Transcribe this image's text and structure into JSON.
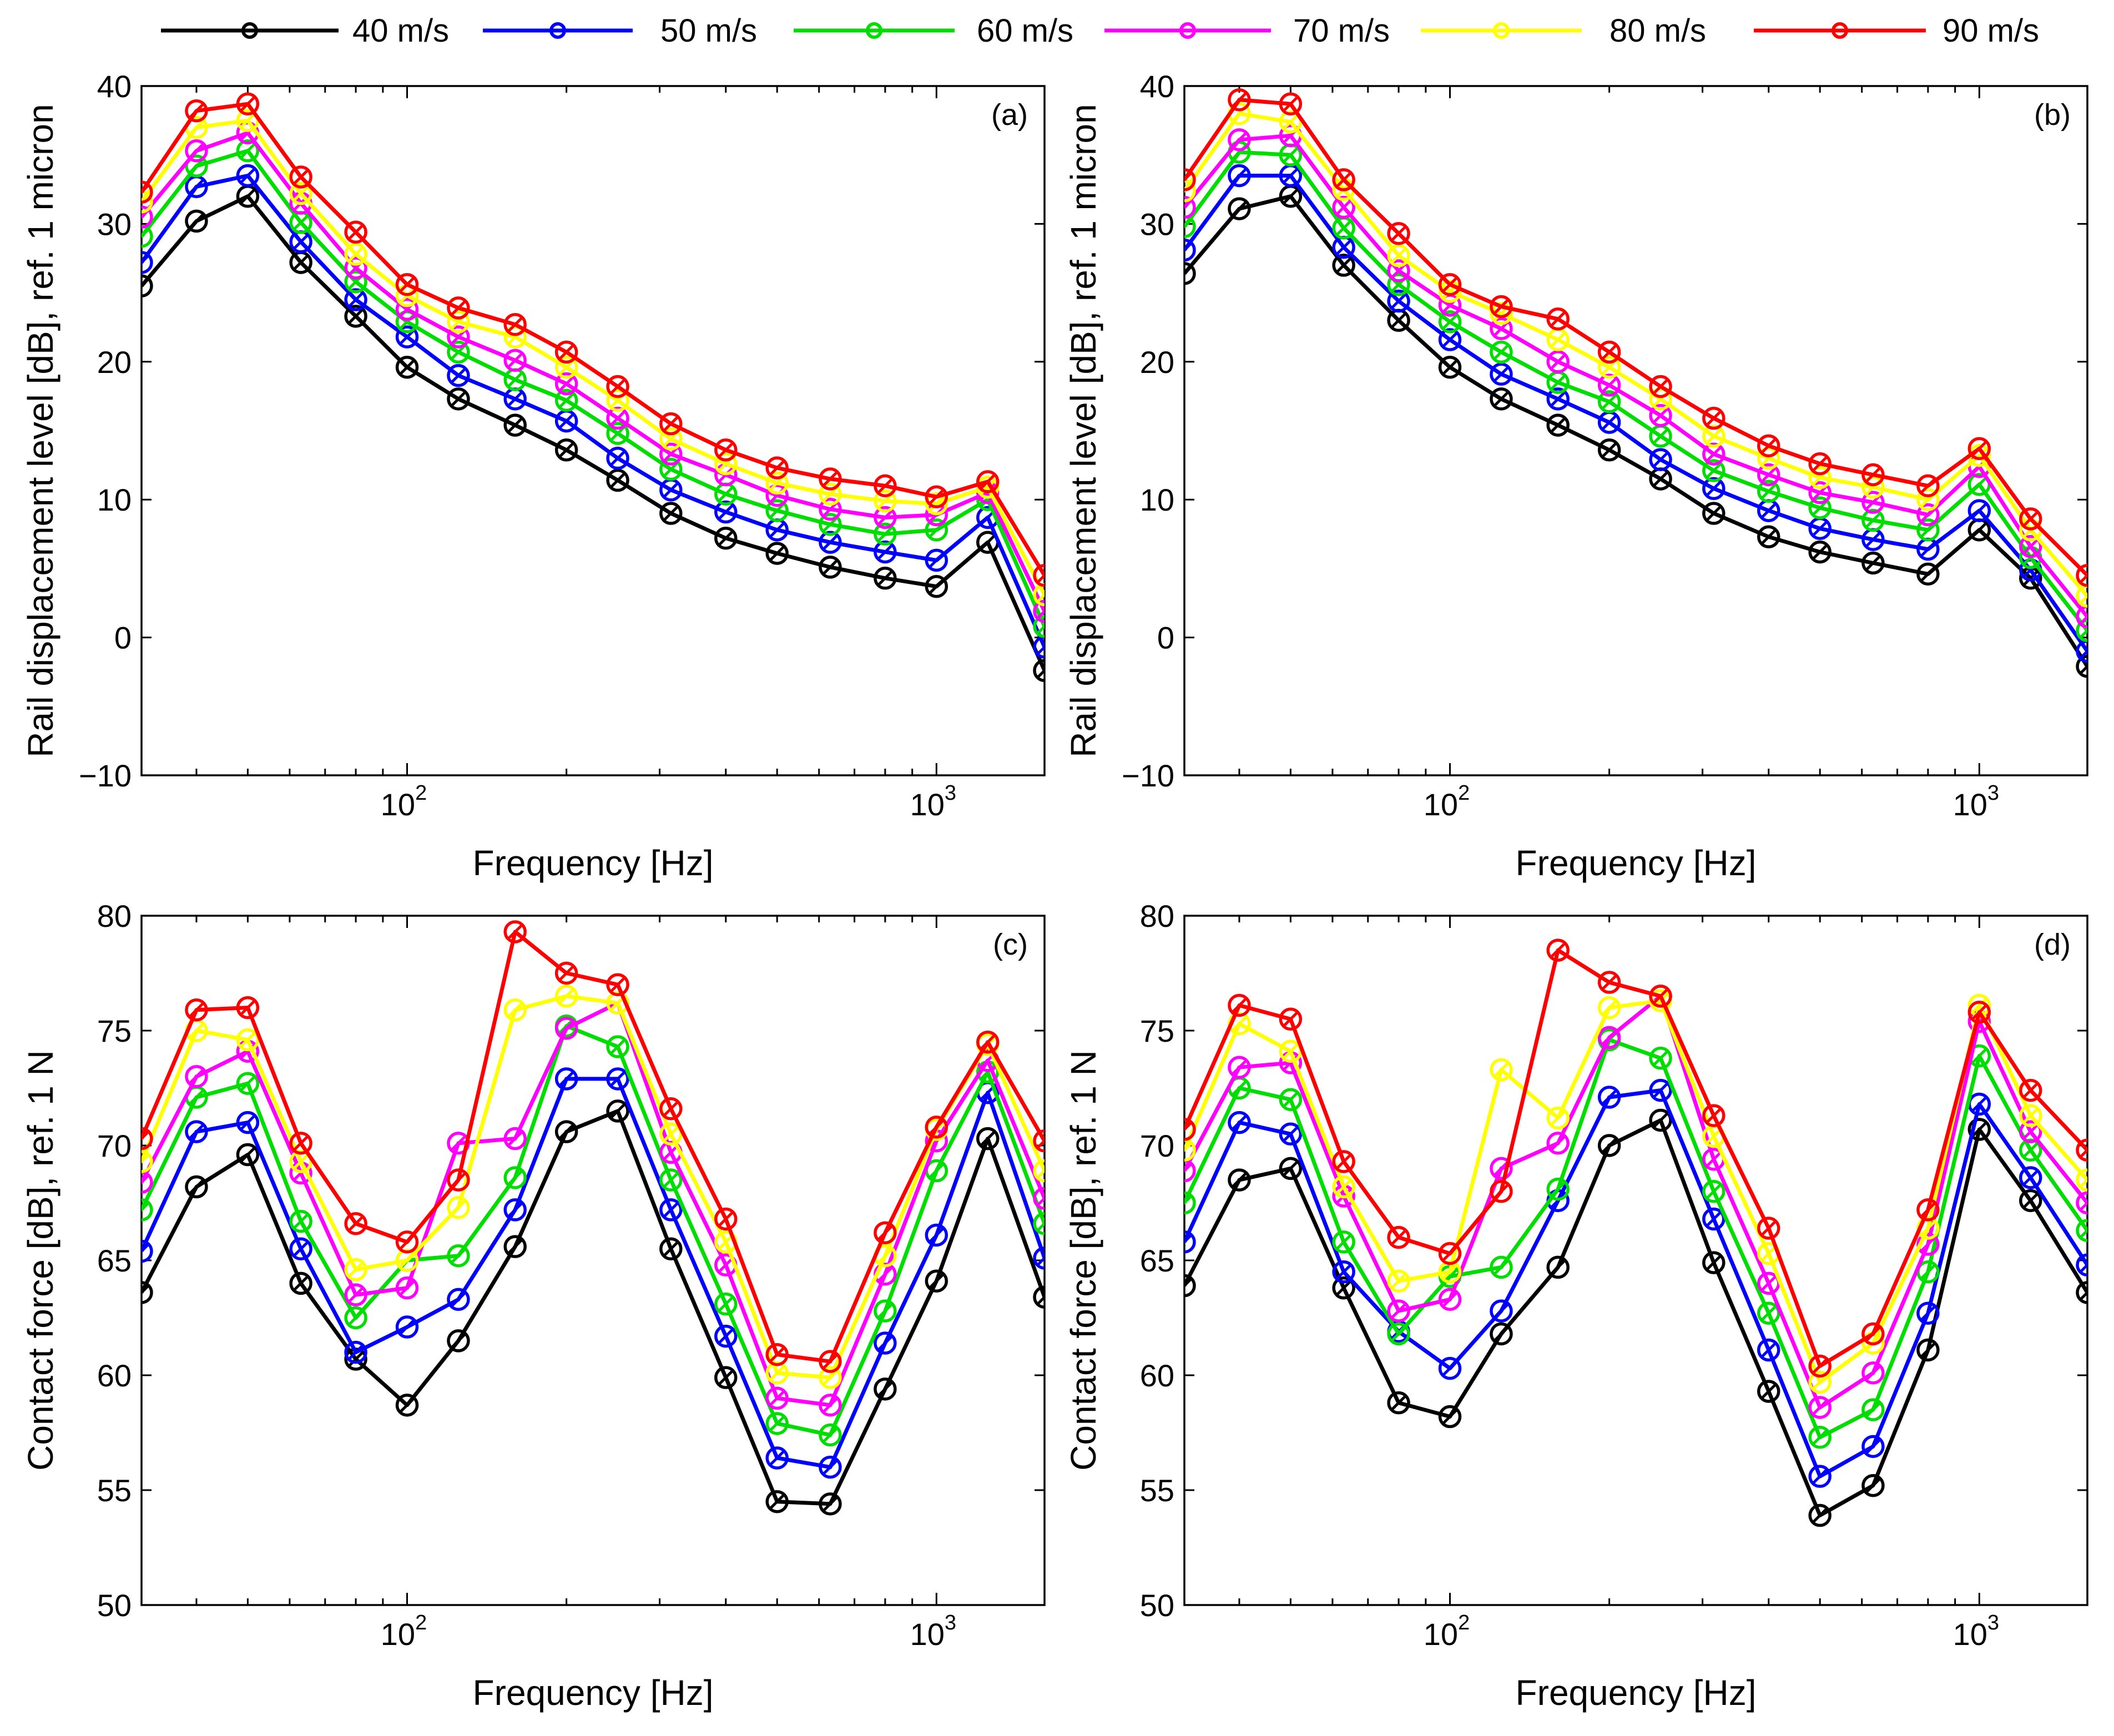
{
  "legend": [
    {
      "name": "40 m/s",
      "color": "#000000"
    },
    {
      "name": "50 m/s",
      "color": "#0000ff"
    },
    {
      "name": "60 m/s",
      "color": "#00dd00"
    },
    {
      "name": "70 m/s",
      "color": "#ff00ff"
    },
    {
      "name": "80 m/s",
      "color": "#ffff00"
    },
    {
      "name": "90 m/s",
      "color": "#ff0000"
    }
  ],
  "chart_data": [
    {
      "type": "line",
      "panel_label": "(a)",
      "xlabel": "Frequency [Hz]",
      "ylabel": "Rail displacement level [dB], ref. 1 micron",
      "xscale": "log",
      "xlim": [
        31.5,
        1600
      ],
      "ylim": [
        -10,
        40
      ],
      "yticks": [
        -10,
        0,
        10,
        20,
        30,
        40
      ],
      "ytick_labels": [
        "−10",
        "0",
        "10",
        "20",
        "30",
        "40"
      ],
      "xticks": [
        {
          "value": 100,
          "base": "10",
          "exp": "2"
        },
        {
          "value": 1000,
          "base": "10",
          "exp": "3"
        }
      ],
      "x": [
        31.5,
        40,
        50,
        63,
        80,
        100,
        125,
        160,
        200,
        250,
        315,
        400,
        500,
        630,
        800,
        1000,
        1250,
        1600
      ],
      "series": [
        {
          "name": "40 m/s",
          "values": [
            25.5,
            30.2,
            32.0,
            27.2,
            23.3,
            19.6,
            17.3,
            15.4,
            13.6,
            11.4,
            9.0,
            7.2,
            6.1,
            5.1,
            4.3,
            3.7,
            6.9,
            -2.4
          ]
        },
        {
          "name": "50 m/s",
          "values": [
            27.2,
            32.7,
            33.5,
            28.7,
            24.5,
            21.8,
            19.0,
            17.3,
            15.7,
            13.0,
            10.7,
            9.1,
            7.8,
            6.9,
            6.2,
            5.6,
            8.7,
            -0.7
          ]
        },
        {
          "name": "60 m/s",
          "values": [
            29.1,
            34.2,
            35.3,
            30.1,
            25.8,
            22.9,
            20.7,
            18.7,
            17.2,
            14.8,
            12.2,
            10.4,
            9.2,
            8.2,
            7.5,
            7.8,
            10.0,
            0.8
          ]
        },
        {
          "name": "70 m/s",
          "values": [
            30.5,
            35.3,
            36.6,
            31.5,
            26.8,
            23.8,
            21.8,
            20.1,
            18.4,
            15.9,
            13.3,
            11.8,
            10.3,
            9.3,
            8.7,
            8.9,
            10.5,
            1.9
          ]
        },
        {
          "name": "80 m/s",
          "values": [
            31.6,
            37.0,
            37.5,
            32.2,
            27.8,
            24.8,
            22.9,
            21.8,
            19.6,
            17.2,
            14.4,
            12.6,
            11.2,
            10.4,
            9.9,
            9.7,
            10.9,
            3.1
          ]
        },
        {
          "name": "90 m/s",
          "values": [
            32.3,
            38.2,
            38.7,
            33.4,
            29.4,
            25.6,
            23.9,
            22.7,
            20.7,
            18.2,
            15.5,
            13.6,
            12.3,
            11.5,
            11.0,
            10.2,
            11.3,
            4.5
          ]
        }
      ]
    },
    {
      "type": "line",
      "panel_label": "(b)",
      "xlabel": "Frequency [Hz]",
      "ylabel": "Rail displacement level [dB], ref. 1 micron",
      "xscale": "log",
      "xlim": [
        31.5,
        1600
      ],
      "ylim": [
        -10,
        40
      ],
      "yticks": [
        -10,
        0,
        10,
        20,
        30,
        40
      ],
      "ytick_labels": [
        "−10",
        "0",
        "10",
        "20",
        "30",
        "40"
      ],
      "xticks": [
        {
          "value": 100,
          "base": "10",
          "exp": "2"
        },
        {
          "value": 1000,
          "base": "10",
          "exp": "3"
        }
      ],
      "x": [
        31.5,
        40,
        50,
        63,
        80,
        100,
        125,
        160,
        200,
        250,
        315,
        400,
        500,
        630,
        800,
        1000,
        1250,
        1600
      ],
      "series": [
        {
          "name": "40 m/s",
          "values": [
            26.4,
            31.1,
            32.0,
            27.0,
            23.0,
            19.6,
            17.3,
            15.4,
            13.6,
            11.5,
            9.0,
            7.3,
            6.2,
            5.4,
            4.6,
            7.8,
            4.3,
            -2.1
          ]
        },
        {
          "name": "50 m/s",
          "values": [
            28.1,
            33.5,
            33.5,
            28.3,
            24.4,
            21.6,
            19.1,
            17.3,
            15.6,
            12.9,
            10.8,
            9.2,
            7.9,
            7.1,
            6.4,
            9.2,
            4.9,
            -1.0
          ]
        },
        {
          "name": "60 m/s",
          "values": [
            29.8,
            35.2,
            35.0,
            29.7,
            25.6,
            22.9,
            20.7,
            18.5,
            17.1,
            14.6,
            12.1,
            10.6,
            9.4,
            8.5,
            7.8,
            11.1,
            5.8,
            0.5
          ]
        },
        {
          "name": "70 m/s",
          "values": [
            31.2,
            36.1,
            36.4,
            31.2,
            26.6,
            24.1,
            22.4,
            20.0,
            18.3,
            16.1,
            13.3,
            11.8,
            10.5,
            9.8,
            8.9,
            12.4,
            6.6,
            1.5
          ]
        },
        {
          "name": "80 m/s",
          "values": [
            32.4,
            38.0,
            37.4,
            32.5,
            27.7,
            25.1,
            23.5,
            21.6,
            19.6,
            17.3,
            14.6,
            13.0,
            11.6,
            10.9,
            10.0,
            13.2,
            7.8,
            3.0
          ]
        },
        {
          "name": "90 m/s",
          "values": [
            33.2,
            39.0,
            38.7,
            33.2,
            29.3,
            25.6,
            24.0,
            23.1,
            20.7,
            18.2,
            15.9,
            13.9,
            12.6,
            11.8,
            11.0,
            13.7,
            8.6,
            4.5
          ]
        }
      ]
    },
    {
      "type": "line",
      "panel_label": "(c)",
      "xlabel": "Frequency [Hz]",
      "ylabel": "Contact force [dB], ref. 1 N",
      "xscale": "log",
      "xlim": [
        31.5,
        1600
      ],
      "ylim": [
        50,
        80
      ],
      "yticks": [
        50,
        55,
        60,
        65,
        70,
        75,
        80
      ],
      "ytick_labels": [
        "50",
        "55",
        "60",
        "65",
        "70",
        "75",
        "80"
      ],
      "xticks": [
        {
          "value": 100,
          "base": "10",
          "exp": "2"
        },
        {
          "value": 1000,
          "base": "10",
          "exp": "3"
        }
      ],
      "x": [
        31.5,
        40,
        50,
        63,
        80,
        100,
        125,
        160,
        200,
        250,
        315,
        400,
        500,
        630,
        800,
        1000,
        1250,
        1600
      ],
      "series": [
        {
          "name": "40 m/s",
          "values": [
            63.6,
            68.2,
            69.6,
            64.0,
            60.7,
            58.7,
            61.5,
            65.6,
            70.6,
            71.5,
            65.5,
            59.9,
            54.5,
            54.4,
            59.4,
            64.1,
            70.3,
            63.4
          ]
        },
        {
          "name": "50 m/s",
          "values": [
            65.4,
            70.6,
            71.0,
            65.5,
            61.0,
            62.1,
            63.3,
            67.2,
            72.9,
            72.9,
            67.2,
            61.7,
            56.4,
            56.0,
            61.4,
            66.1,
            72.3,
            65.1
          ]
        },
        {
          "name": "60 m/s",
          "values": [
            67.2,
            72.1,
            72.7,
            66.7,
            62.5,
            65.0,
            65.2,
            68.6,
            75.2,
            74.3,
            68.5,
            63.1,
            57.9,
            57.4,
            62.8,
            68.9,
            73.2,
            66.6
          ]
        },
        {
          "name": "70 m/s",
          "values": [
            68.4,
            73.0,
            74.1,
            68.8,
            63.5,
            63.8,
            70.1,
            70.3,
            75.1,
            76.2,
            69.7,
            64.8,
            59.0,
            58.7,
            64.4,
            70.2,
            73.7,
            67.7
          ]
        },
        {
          "name": "80 m/s",
          "values": [
            69.3,
            75.0,
            74.6,
            69.3,
            64.6,
            65.0,
            67.3,
            75.9,
            76.5,
            76.2,
            70.5,
            65.8,
            60.1,
            59.9,
            65.2,
            70.7,
            74.4,
            68.9
          ]
        },
        {
          "name": "90 m/s",
          "values": [
            70.3,
            75.9,
            76.0,
            70.1,
            66.6,
            65.8,
            68.5,
            79.3,
            77.5,
            77.0,
            71.6,
            66.8,
            60.9,
            60.6,
            66.2,
            70.8,
            74.5,
            70.2
          ]
        }
      ]
    },
    {
      "type": "line",
      "panel_label": "(d)",
      "xlabel": "Frequency [Hz]",
      "ylabel": "Contact force [dB], ref. 1 N",
      "xscale": "log",
      "xlim": [
        31.5,
        1600
      ],
      "ylim": [
        50,
        80
      ],
      "yticks": [
        50,
        55,
        60,
        65,
        70,
        75,
        80
      ],
      "ytick_labels": [
        "50",
        "55",
        "60",
        "65",
        "70",
        "75",
        "80"
      ],
      "xticks": [
        {
          "value": 100,
          "base": "10",
          "exp": "2"
        },
        {
          "value": 1000,
          "base": "10",
          "exp": "3"
        }
      ],
      "x": [
        31.5,
        40,
        50,
        63,
        80,
        100,
        125,
        160,
        200,
        250,
        315,
        400,
        500,
        630,
        800,
        1000,
        1250,
        1600
      ],
      "series": [
        {
          "name": "40 m/s",
          "values": [
            63.9,
            68.5,
            69.0,
            63.8,
            58.8,
            58.2,
            61.8,
            64.7,
            70.0,
            71.1,
            64.9,
            59.3,
            53.9,
            55.2,
            61.1,
            70.7,
            67.6,
            63.6
          ]
        },
        {
          "name": "50 m/s",
          "values": [
            65.8,
            71.0,
            70.5,
            64.5,
            61.9,
            60.3,
            62.8,
            67.6,
            72.1,
            72.4,
            66.8,
            61.1,
            55.6,
            56.9,
            62.7,
            71.8,
            68.6,
            64.8
          ]
        },
        {
          "name": "60 m/s",
          "values": [
            67.5,
            72.5,
            72.0,
            65.8,
            61.8,
            64.3,
            64.7,
            68.1,
            74.6,
            73.8,
            68.0,
            62.7,
            57.3,
            58.5,
            64.5,
            73.9,
            69.8,
            66.3
          ]
        },
        {
          "name": "70 m/s",
          "values": [
            68.9,
            73.4,
            73.6,
            67.8,
            62.8,
            63.3,
            69.0,
            70.1,
            74.7,
            76.5,
            69.4,
            64.0,
            58.6,
            60.1,
            65.7,
            75.4,
            70.6,
            67.5
          ]
        },
        {
          "name": "80 m/s",
          "values": [
            69.8,
            75.3,
            74.1,
            68.2,
            64.1,
            64.5,
            73.3,
            71.2,
            76.0,
            76.3,
            70.4,
            65.3,
            59.7,
            61.4,
            66.4,
            76.1,
            71.3,
            68.5
          ]
        },
        {
          "name": "90 m/s",
          "values": [
            70.7,
            76.1,
            75.5,
            69.3,
            66.0,
            65.3,
            68.0,
            78.5,
            77.1,
            76.5,
            71.3,
            66.4,
            60.4,
            61.8,
            67.2,
            75.8,
            72.4,
            69.8
          ]
        }
      ]
    }
  ]
}
